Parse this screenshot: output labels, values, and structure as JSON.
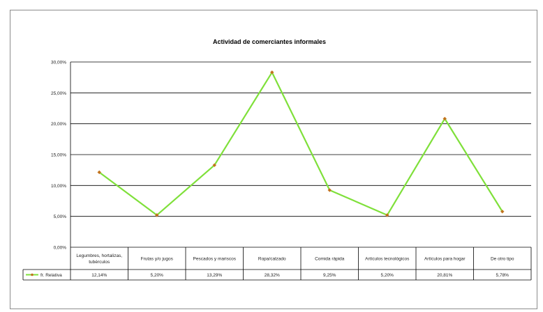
{
  "chart_data": {
    "type": "line",
    "title": "Actividad de comerciantes informales",
    "xlabel": "",
    "ylabel": "",
    "ylim": [
      0,
      30
    ],
    "y_ticks": [
      "0,00%",
      "5,00%",
      "10,00%",
      "15,00%",
      "20,00%",
      "25,00%",
      "30,00%"
    ],
    "categories": [
      [
        "Legumbres, hortalizas,",
        "tubérculos"
      ],
      [
        "Frutas y/o jugos"
      ],
      [
        "Pescados y mariscos"
      ],
      [
        "Ropa/calzado"
      ],
      [
        "Comida rápida"
      ],
      [
        "Artículos tecnológicos"
      ],
      [
        "Artículos para hogar"
      ],
      [
        "De otro tipo"
      ]
    ],
    "series": [
      {
        "name": "fr. Relativa",
        "values": [
          12.14,
          5.2,
          13.29,
          28.32,
          9.25,
          5.2,
          20.81,
          5.78
        ],
        "labels": [
          "12,14%",
          "5,20%",
          "13,29%",
          "28,32%",
          "9,25%",
          "5,20%",
          "20,81%",
          "5,78%"
        ],
        "line_color": "#7FE03A",
        "marker_color": "#C0701E"
      }
    ],
    "grid": true,
    "legend": "data-table"
  }
}
